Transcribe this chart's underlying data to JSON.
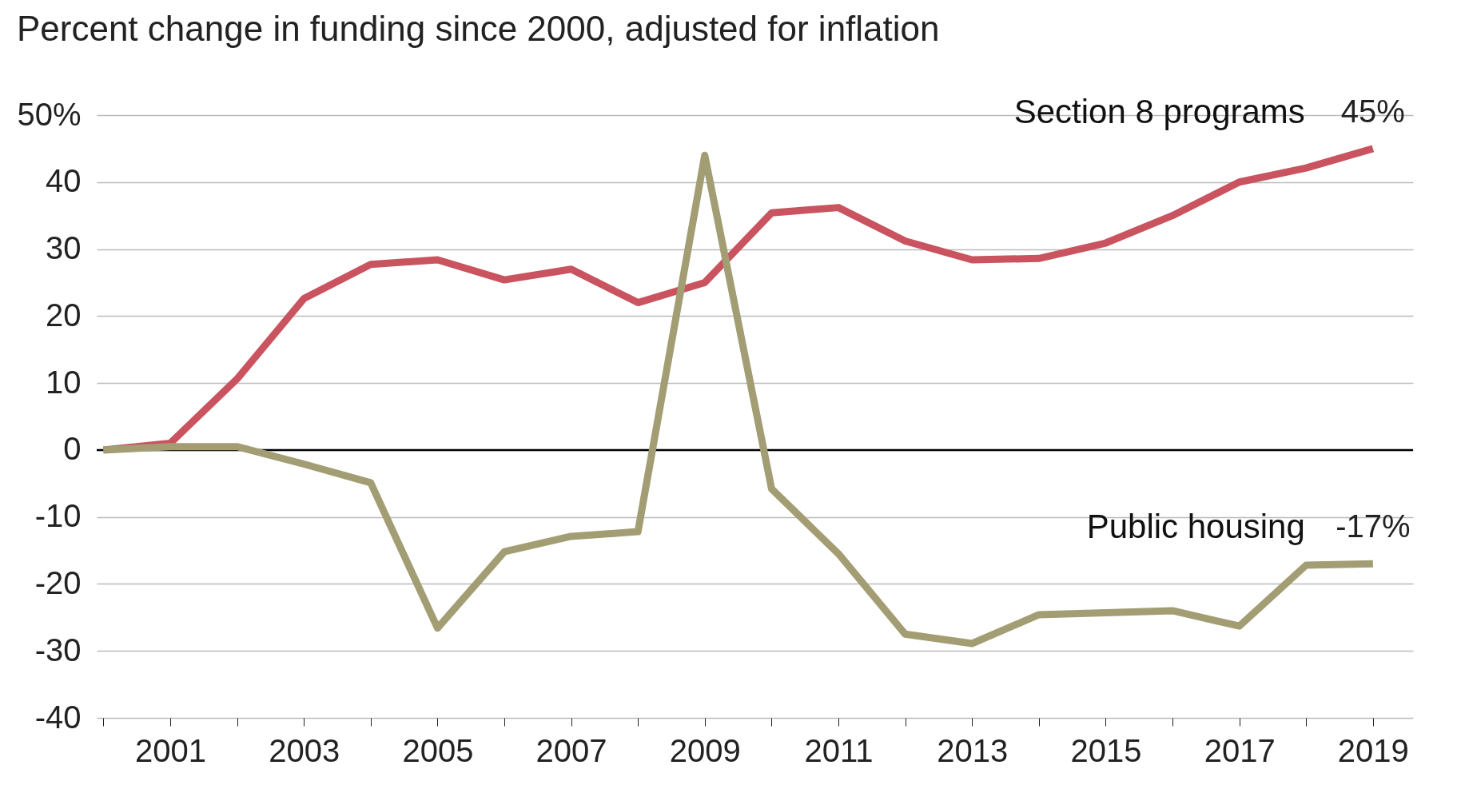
{
  "chart_data": {
    "type": "line",
    "title": "Percent change in funding since 2000, adjusted for inflation",
    "x": [
      2000,
      2001,
      2002,
      2003,
      2004,
      2005,
      2006,
      2007,
      2008,
      2009,
      2010,
      2011,
      2012,
      2013,
      2014,
      2015,
      2016,
      2017,
      2018,
      2019
    ],
    "series": [
      {
        "name": "Section 8 programs",
        "color": "#c9545f",
        "values": [
          0,
          1,
          10.6,
          22.6,
          27.7,
          28.4,
          25.4,
          27,
          22,
          25,
          35.4,
          36.2,
          31.2,
          28.4,
          28.6,
          30.9,
          35,
          40,
          42.1,
          45
        ],
        "value_labels": [
          null,
          null,
          null,
          null,
          null,
          null,
          null,
          null,
          null,
          null,
          null,
          null,
          null,
          null,
          null,
          null,
          null,
          null,
          null,
          "45%"
        ]
      },
      {
        "name": "Public housing",
        "color": "#a39d74",
        "values": [
          0,
          0.5,
          0.5,
          -2.1,
          -4.9,
          -26.6,
          -15.2,
          -12.9,
          -12.2,
          44,
          -5.8,
          -15.5,
          -27.5,
          -28.9,
          -24.6,
          -24.3,
          -24,
          -26.3,
          -17.2,
          -17
        ],
        "value_labels": [
          null,
          null,
          null,
          null,
          null,
          null,
          null,
          null,
          null,
          null,
          null,
          null,
          null,
          null,
          null,
          null,
          null,
          null,
          null,
          "-17%"
        ]
      }
    ],
    "xlim": [
      1999.9,
      2019.6
    ],
    "xticks": [
      {
        "value": 2000,
        "label": null
      },
      2001,
      {
        "value": 2002,
        "label": null
      },
      2003,
      {
        "value": 2004,
        "label": null
      },
      2005,
      {
        "value": 2006,
        "label": null
      },
      2007,
      {
        "value": 2008,
        "label": null
      },
      2009,
      {
        "value": 2010,
        "label": null
      },
      2011,
      {
        "value": 2012,
        "label": null
      },
      2013,
      {
        "value": 2014,
        "label": null
      },
      2015,
      {
        "value": 2016,
        "label": null
      },
      2017,
      {
        "value": 2018,
        "label": null
      },
      2019
    ],
    "ylim": [
      -40,
      50
    ],
    "yticks": [
      -40,
      -30,
      -20,
      -10,
      0,
      10,
      20,
      30,
      40,
      {
        "value": 50,
        "label": "50%"
      }
    ],
    "ref_lines": [
      {
        "axis": "y",
        "value": 0,
        "color": "#000000"
      }
    ],
    "grid": "y",
    "marker": "none",
    "line_style": "solid"
  }
}
